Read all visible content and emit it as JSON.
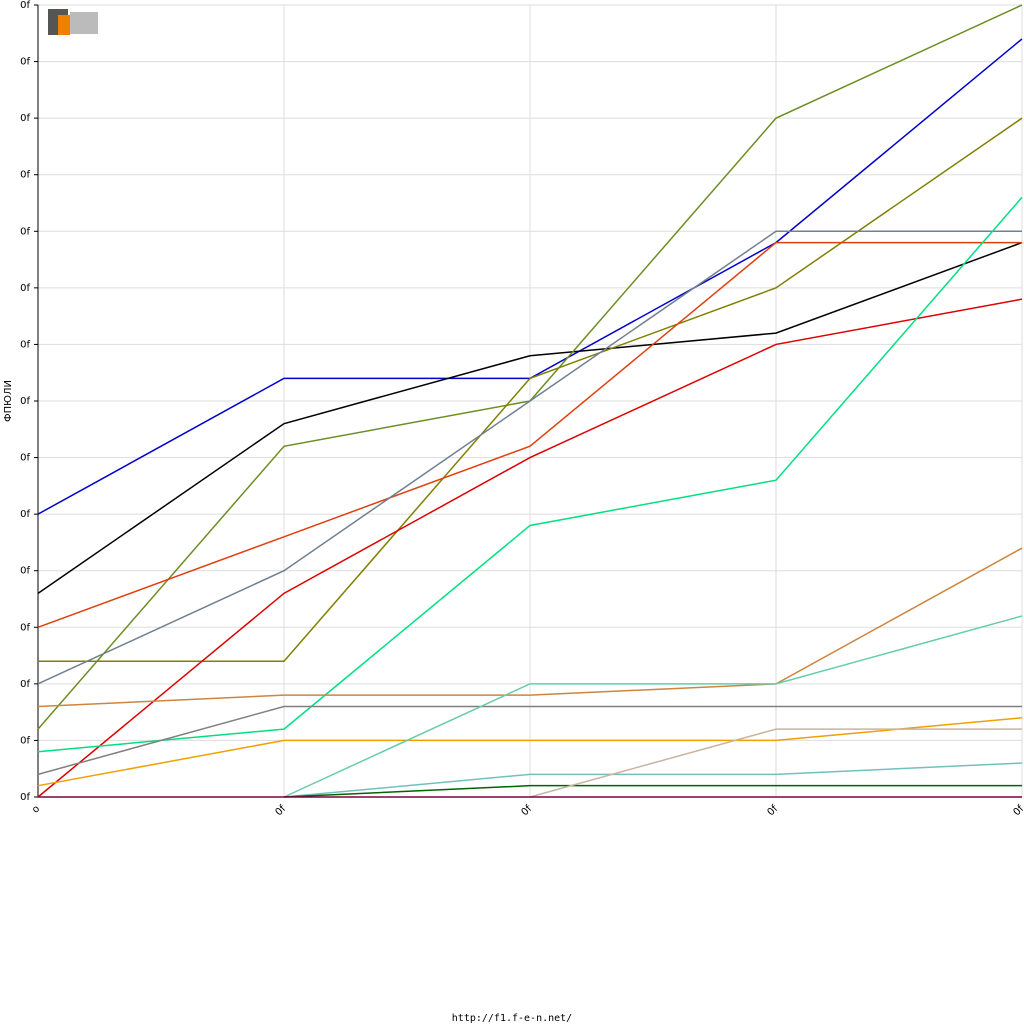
{
  "chart_data": {
    "type": "line",
    "y_label": "ФПЮЛИ",
    "footer": "http://f1.f-e-n.net/",
    "categories": [
      "o",
      "0f",
      "0f",
      "0f",
      "0f"
    ],
    "ylim": [
      0,
      14
    ],
    "yticks": [
      {
        "value": 0,
        "label": "0f"
      },
      {
        "value": 1,
        "label": "0f"
      },
      {
        "value": 2,
        "label": "0f"
      },
      {
        "value": 3,
        "label": "0f"
      },
      {
        "value": 4,
        "label": "0f"
      },
      {
        "value": 5,
        "label": "0f"
      },
      {
        "value": 6,
        "label": "0f"
      },
      {
        "value": 7,
        "label": "0f"
      },
      {
        "value": 8,
        "label": "0f"
      },
      {
        "value": 9,
        "label": "0f"
      },
      {
        "value": 10,
        "label": "0f"
      },
      {
        "value": 11,
        "label": "0f"
      },
      {
        "value": 12,
        "label": "0f"
      },
      {
        "value": 13,
        "label": "0f"
      },
      {
        "value": 14,
        "label": "0f"
      }
    ],
    "grid": true,
    "series": [
      {
        "color": "#0000cc",
        "values": [
          5.0,
          7.4,
          7.4,
          9.8,
          13.4
        ]
      },
      {
        "color": "#000000",
        "values": [
          3.6,
          6.6,
          7.8,
          8.2,
          9.8
        ]
      },
      {
        "color": "#6b8e23",
        "values": [
          1.2,
          6.2,
          7.0,
          12.0,
          14.0
        ]
      },
      {
        "color": "#808000",
        "values": [
          2.4,
          2.4,
          7.4,
          9.0,
          12.0
        ]
      },
      {
        "color": "#e04010",
        "values": [
          3.0,
          4.6,
          6.2,
          9.8,
          9.8
        ]
      },
      {
        "color": "#708090",
        "values": [
          2.0,
          4.0,
          7.0,
          10.0,
          10.0
        ]
      },
      {
        "color": "#dd0000",
        "values": [
          0,
          3.6,
          6.0,
          8.0,
          8.8
        ]
      },
      {
        "color": "#00e080",
        "values": [
          0.8,
          1.2,
          4.8,
          5.6,
          10.6
        ]
      },
      {
        "color": "#cd853f",
        "values": [
          1.6,
          1.8,
          1.8,
          2.0,
          4.4
        ]
      },
      {
        "color": "#808080",
        "values": [
          0.4,
          1.6,
          1.6,
          1.6,
          1.6
        ]
      },
      {
        "color": "#f0a000",
        "values": [
          0.2,
          1.0,
          1.0,
          1.0,
          1.4
        ]
      },
      {
        "color": "#66cdaa",
        "values": [
          null,
          0,
          2.0,
          2.0,
          3.2
        ]
      },
      {
        "color": "#70c0c0",
        "values": [
          null,
          0,
          0.4,
          0.4,
          0.6
        ]
      },
      {
        "color": "#006400",
        "values": [
          null,
          0,
          0.2,
          0.2,
          0.2
        ]
      },
      {
        "color": "#c8b4a0",
        "values": [
          null,
          null,
          0,
          1.2,
          1.2
        ]
      },
      {
        "color": "#800040",
        "values": [
          0,
          0,
          0,
          0,
          0
        ]
      }
    ]
  }
}
